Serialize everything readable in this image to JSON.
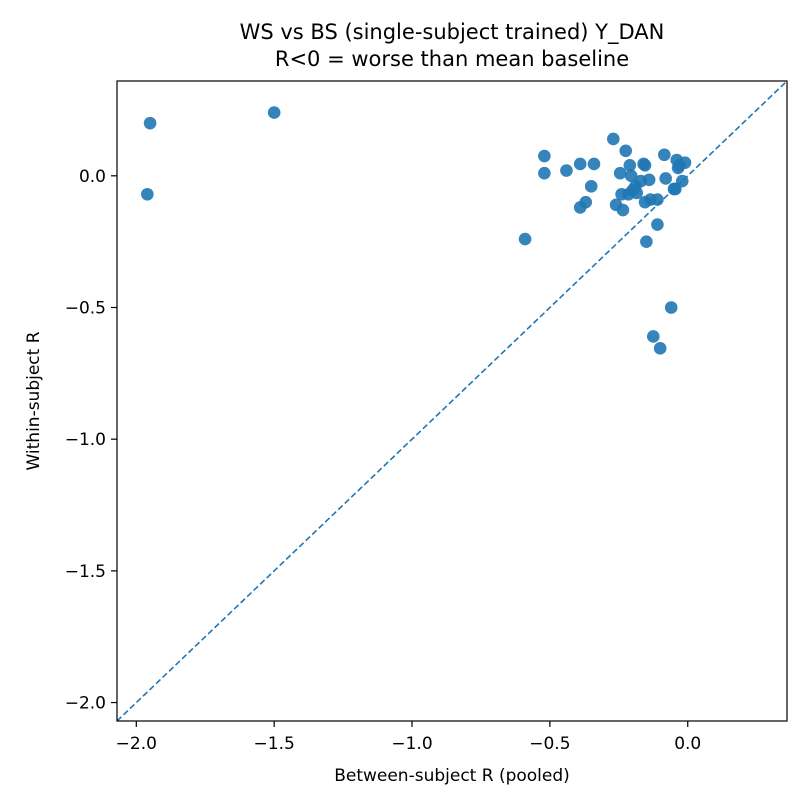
{
  "chart_data": {
    "type": "scatter",
    "title": "WS vs BS (single-subject trained)  Y_DAN",
    "subtitle": "R<0 = worse than mean baseline",
    "xlabel": "Between-subject R (pooled)",
    "ylabel": "Within-subject R",
    "xlim": [
      -2.07,
      0.36
    ],
    "ylim": [
      -2.07,
      0.36
    ],
    "grid": false,
    "reference_line": {
      "style": "dashed",
      "description": "y = x"
    },
    "x_ticks": [
      -2.0,
      -1.5,
      -1.0,
      -0.5,
      0.0
    ],
    "x_tick_labels": [
      "−2.0",
      "−1.5",
      "−1.0",
      "−0.5",
      "0.0"
    ],
    "y_ticks": [
      -2.0,
      -1.5,
      -1.0,
      -0.5,
      0.0
    ],
    "y_tick_labels": [
      "−2.0",
      "−1.5",
      "−1.0",
      "−0.5",
      "0.0"
    ],
    "colors": {
      "points": "#1f77b4",
      "reference_line": "#1f77b4",
      "axes": "#000000"
    },
    "points": [
      {
        "x": -1.95,
        "y": 0.2
      },
      {
        "x": -1.96,
        "y": -0.07
      },
      {
        "x": -1.5,
        "y": 0.24
      },
      {
        "x": -0.59,
        "y": -0.24
      },
      {
        "x": -0.52,
        "y": 0.075
      },
      {
        "x": -0.52,
        "y": 0.01
      },
      {
        "x": -0.44,
        "y": 0.02
      },
      {
        "x": -0.39,
        "y": 0.045
      },
      {
        "x": -0.39,
        "y": -0.12
      },
      {
        "x": -0.37,
        "y": -0.1
      },
      {
        "x": -0.35,
        "y": -0.04
      },
      {
        "x": -0.34,
        "y": 0.045
      },
      {
        "x": -0.27,
        "y": 0.14
      },
      {
        "x": -0.26,
        "y": -0.11
      },
      {
        "x": -0.245,
        "y": 0.01
      },
      {
        "x": -0.24,
        "y": -0.07
      },
      {
        "x": -0.235,
        "y": -0.13
      },
      {
        "x": -0.225,
        "y": 0.095
      },
      {
        "x": -0.215,
        "y": -0.07
      },
      {
        "x": -0.21,
        "y": 0.04
      },
      {
        "x": -0.205,
        "y": 0.0
      },
      {
        "x": -0.2,
        "y": -0.055
      },
      {
        "x": -0.19,
        "y": -0.04
      },
      {
        "x": -0.185,
        "y": -0.065
      },
      {
        "x": -0.17,
        "y": -0.02
      },
      {
        "x": -0.16,
        "y": 0.045
      },
      {
        "x": -0.155,
        "y": 0.04
      },
      {
        "x": -0.155,
        "y": -0.1
      },
      {
        "x": -0.15,
        "y": -0.25
      },
      {
        "x": -0.14,
        "y": -0.015
      },
      {
        "x": -0.135,
        "y": -0.09
      },
      {
        "x": -0.125,
        "y": -0.61
      },
      {
        "x": -0.11,
        "y": -0.185
      },
      {
        "x": -0.11,
        "y": -0.09
      },
      {
        "x": -0.1,
        "y": -0.655
      },
      {
        "x": -0.085,
        "y": 0.08
      },
      {
        "x": -0.08,
        "y": -0.01
      },
      {
        "x": -0.06,
        "y": -0.5
      },
      {
        "x": -0.05,
        "y": -0.05
      },
      {
        "x": -0.045,
        "y": -0.05
      },
      {
        "x": -0.04,
        "y": 0.06
      },
      {
        "x": -0.035,
        "y": 0.03
      },
      {
        "x": -0.03,
        "y": 0.04
      },
      {
        "x": -0.02,
        "y": -0.02
      },
      {
        "x": -0.01,
        "y": 0.05
      }
    ]
  }
}
